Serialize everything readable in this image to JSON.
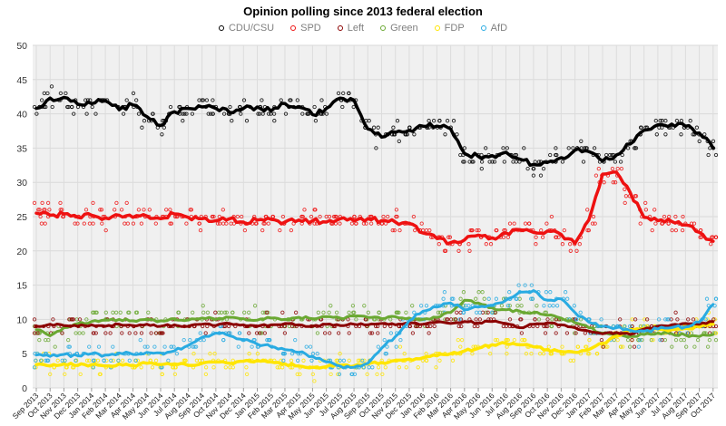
{
  "chart_data": {
    "type": "line",
    "title": "Opinion polling since 2013 federal election",
    "legend_position": "top",
    "grid": true,
    "y_axis": {
      "min": 0,
      "max": 50,
      "step": 5
    },
    "x_categories": [
      "Sep 2013",
      "Oct 2013",
      "Nov 2013",
      "Dec 2013",
      "Jan 2014",
      "Feb 2014",
      "Mar 2014",
      "Apr 2014",
      "May 2014",
      "Jun 2014",
      "Jul 2014",
      "Aug 2014",
      "Sep 2014",
      "Oct 2014",
      "Nov 2014",
      "Dec 2014",
      "Jan 2015",
      "Feb 2015",
      "Mar 2015",
      "Apr 2015",
      "May 2015",
      "Jun 2015",
      "Jul 2015",
      "Aug 2015",
      "Sep 2015",
      "Oct 2015",
      "Nov 2015",
      "Dec 2015",
      "Jan 2016",
      "Feb 2016",
      "Mar 2016",
      "Apr 2016",
      "May 2016",
      "Jun 2016",
      "Jul 2016",
      "Aug 2016",
      "Sep 2016",
      "Oct 2016",
      "Nov 2016",
      "Dec 2016",
      "Jan 2017",
      "Feb 2017",
      "Mar 2017",
      "Apr 2017",
      "May 2017",
      "Jun 2017",
      "Jul 2017",
      "Aug 2017",
      "Sep 2017",
      "Oct 2017"
    ],
    "series": [
      {
        "name": "CDU/CSU",
        "color": "#000000",
        "line_width": 3.5,
        "noise": 0.4,
        "points_per_month": 6,
        "values": [
          40.8,
          42.3,
          42.4,
          41.4,
          41.5,
          41.9,
          40.6,
          41.3,
          39.6,
          38.3,
          40.3,
          40.8,
          41.0,
          40.8,
          40.2,
          40.8,
          41.0,
          40.4,
          41.5,
          41.0,
          39.9,
          40.8,
          42.3,
          42.0,
          37.8,
          36.6,
          37.3,
          37.6,
          38.2,
          38.2,
          37.8,
          34.2,
          33.8,
          33.9,
          34.4,
          33.4,
          32.6,
          32.9,
          33.6,
          34.7,
          34.5,
          33.1,
          34.0,
          35.6,
          37.6,
          38.4,
          38.5,
          38.2,
          37.2,
          35.0
        ]
      },
      {
        "name": "SPD",
        "color": "#ee1111",
        "line_width": 3.5,
        "noise": 0.35,
        "points_per_month": 6,
        "values": [
          25.5,
          25.2,
          25.4,
          24.9,
          25.2,
          24.8,
          25.2,
          24.9,
          25.1,
          24.7,
          25.4,
          24.9,
          24.7,
          24.4,
          24.7,
          24.2,
          24.5,
          24.6,
          24.2,
          24.5,
          24.4,
          24.2,
          24.7,
          24.4,
          24.7,
          24.4,
          24.2,
          24.0,
          22.6,
          21.8,
          21.2,
          21.6,
          22.3,
          21.9,
          22.6,
          23.1,
          22.7,
          22.9,
          22.4,
          21.1,
          24.5,
          31.2,
          31.5,
          28.5,
          24.9,
          24.4,
          24.3,
          23.8,
          22.7,
          21.4
        ]
      },
      {
        "name": "Left",
        "color": "#8b0000",
        "line_width": 3,
        "noise": 0.15,
        "points_per_month": 5,
        "values": [
          9.0,
          9.3,
          9.1,
          9.0,
          9.2,
          9.0,
          9.3,
          9.1,
          9.3,
          9.0,
          9.2,
          9.0,
          9.3,
          9.1,
          9.4,
          9.2,
          9.0,
          9.2,
          9.4,
          9.2,
          9.0,
          9.3,
          9.1,
          9.3,
          9.2,
          9.4,
          9.2,
          9.5,
          9.3,
          9.6,
          9.4,
          9.7,
          9.5,
          9.7,
          9.4,
          8.8,
          9.3,
          9.5,
          9.2,
          8.8,
          8.3,
          7.9,
          8.1,
          7.8,
          8.6,
          9.0,
          9.2,
          9.4,
          9.3,
          9.7
        ]
      },
      {
        "name": "Green",
        "color": "#6aa832",
        "line_width": 3,
        "noise": 0.2,
        "points_per_month": 5,
        "values": [
          8.5,
          7.6,
          8.8,
          9.4,
          9.7,
          9.9,
          10.0,
          9.8,
          10.0,
          9.8,
          10.1,
          9.9,
          10.2,
          10.0,
          10.3,
          10.1,
          9.9,
          10.2,
          10.0,
          10.3,
          10.1,
          10.4,
          10.2,
          10.5,
          10.3,
          10.1,
          10.4,
          10.2,
          10.0,
          10.3,
          11.0,
          12.8,
          12.4,
          11.7,
          11.4,
          11.2,
          11.0,
          10.6,
          10.2,
          9.5,
          8.8,
          8.0,
          7.7,
          7.5,
          7.8,
          8.0,
          7.9,
          7.7,
          7.5,
          7.8
        ]
      },
      {
        "name": "FDP",
        "color": "#ffe500",
        "line_width": 3.5,
        "noise": 0.2,
        "points_per_month": 5,
        "values": [
          3.4,
          3.2,
          3.5,
          3.3,
          3.4,
          3.2,
          3.5,
          3.3,
          3.6,
          3.4,
          3.5,
          3.3,
          3.6,
          3.8,
          3.6,
          3.9,
          4.0,
          3.8,
          3.5,
          3.2,
          3.0,
          3.1,
          3.3,
          3.2,
          3.5,
          3.7,
          4.0,
          4.2,
          4.4,
          4.7,
          5.0,
          5.4,
          5.8,
          6.3,
          6.5,
          6.3,
          6.0,
          5.6,
          5.3,
          5.2,
          5.6,
          6.5,
          7.5,
          8.5,
          8.7,
          8.6,
          8.5,
          8.7,
          8.9,
          9.3
        ]
      },
      {
        "name": "AfD",
        "color": "#29abe2",
        "line_width": 3,
        "noise": 0.25,
        "points_per_month": 5,
        "values": [
          4.8,
          4.6,
          4.9,
          4.7,
          5.0,
          4.8,
          5.1,
          4.9,
          5.2,
          5.1,
          5.4,
          6.2,
          7.4,
          8.0,
          7.6,
          7.0,
          6.4,
          6.0,
          5.6,
          5.2,
          4.6,
          3.8,
          3.2,
          3.0,
          3.6,
          5.8,
          7.5,
          9.8,
          11.2,
          11.8,
          12.4,
          11.4,
          11.8,
          12.0,
          12.8,
          14.0,
          14.2,
          12.8,
          13.0,
          11.0,
          9.6,
          9.0,
          8.8,
          8.4,
          8.3,
          8.6,
          8.8,
          8.9,
          9.6,
          12.2
        ]
      }
    ],
    "scatter": {
      "jitter": 1.9,
      "seed": 7
    },
    "style": {
      "plot_bg": "#f0f0f0",
      "grid_v": "#dcdcdc",
      "grid_h": "#d9d9d9",
      "axis_text": "#333333",
      "x_label_text": "#1a1a1a",
      "legend_text": "#808080",
      "tick": "#999999"
    }
  }
}
